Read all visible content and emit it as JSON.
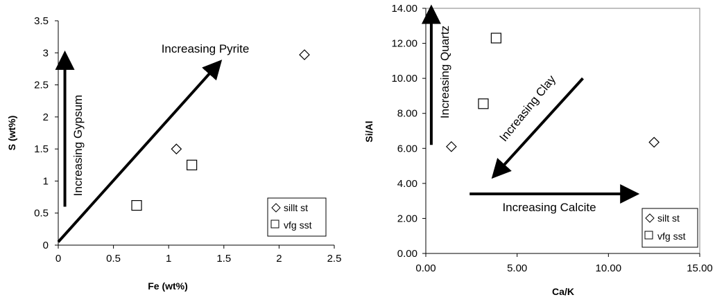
{
  "chart_data": [
    {
      "type": "scatter",
      "xlabel": "Fe (wt%)",
      "ylabel": "S (wt%)",
      "xlim": [
        0,
        2.5
      ],
      "ylim": [
        0,
        3.5
      ],
      "xticks": [
        "0",
        "0.5",
        "1",
        "1.5",
        "2",
        "2.5"
      ],
      "yticks": [
        "0",
        "0.5",
        "1",
        "1.5",
        "2",
        "2.5",
        "3",
        "3.5"
      ],
      "grid": false,
      "legend_position": "bottom-right",
      "series": [
        {
          "name": "sillt st",
          "marker": "diamond",
          "x": [
            1.07,
            2.23
          ],
          "y": [
            1.5,
            2.97
          ]
        },
        {
          "name": "vfg sst",
          "marker": "square",
          "x": [
            0.71,
            1.21
          ],
          "y": [
            0.62,
            1.25
          ]
        }
      ],
      "annotations": [
        {
          "text": "Increasing Pyrite",
          "arrow_from": [
            0.0,
            0.05
          ],
          "arrow_to": [
            1.45,
            2.83
          ]
        },
        {
          "text": "Increasing Gypsum",
          "arrow_from": [
            0.06,
            0.6
          ],
          "arrow_to": [
            0.06,
            2.95
          ]
        }
      ]
    },
    {
      "type": "scatter",
      "xlabel": "Ca/K",
      "ylabel": "Si/Al",
      "xlim": [
        0,
        15
      ],
      "ylim": [
        0,
        14
      ],
      "xticks": [
        "0.00",
        "5.00",
        "10.00",
        "15.00"
      ],
      "yticks": [
        "0.00",
        "2.00",
        "4.00",
        "6.00",
        "8.00",
        "10.00",
        "12.00",
        "14.00"
      ],
      "grid": false,
      "legend_position": "bottom-right",
      "series": [
        {
          "name": "silt st",
          "marker": "diamond",
          "x": [
            1.4,
            12.5
          ],
          "y": [
            6.1,
            6.35
          ]
        },
        {
          "name": "vfg sst",
          "marker": "square",
          "x": [
            3.15,
            3.85
          ],
          "y": [
            8.55,
            12.3
          ]
        }
      ],
      "annotations": [
        {
          "text": "Increasing Quartz",
          "arrow_from": [
            0.3,
            6.2
          ],
          "arrow_to": [
            0.3,
            13.9
          ]
        },
        {
          "text": "Increasing Clay",
          "arrow_from": [
            8.6,
            10.0
          ],
          "arrow_to": [
            3.8,
            4.5
          ]
        },
        {
          "text": "Increasing Calcite",
          "arrow_from": [
            2.4,
            3.4
          ],
          "arrow_to": [
            11.4,
            3.4
          ]
        }
      ]
    }
  ]
}
